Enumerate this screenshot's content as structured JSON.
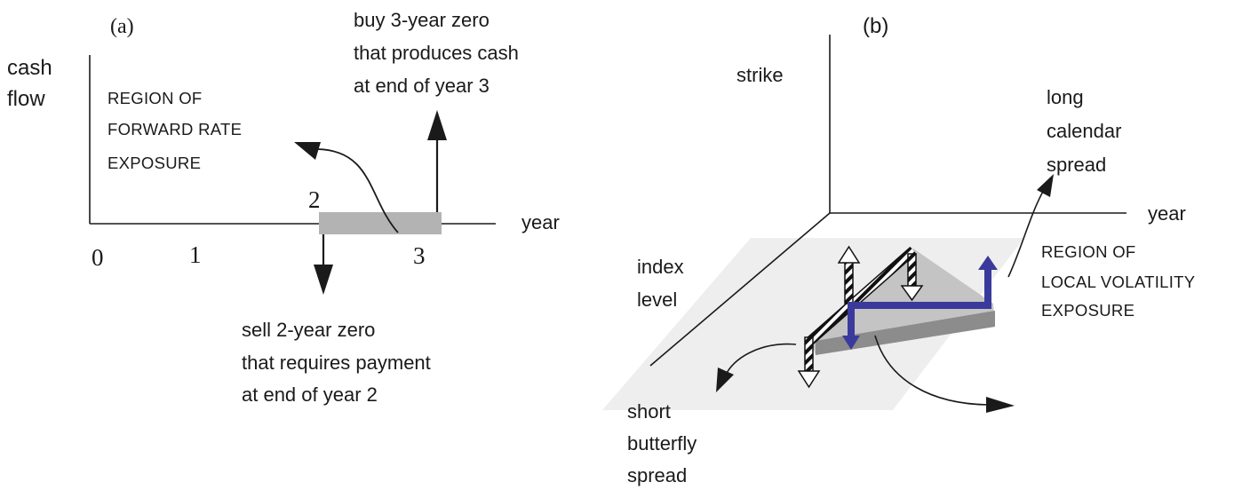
{
  "panel_a": {
    "label": "(a)",
    "y_axis_label_line1": "cash",
    "y_axis_label_line2": "flow",
    "x_axis_label": "year",
    "region_label": [
      "REGION OF",
      "FORWARD RATE",
      "EXPOSURE"
    ],
    "ticks": [
      "0",
      "1",
      "2",
      "3"
    ],
    "buy_label": [
      "buy 3-year zero",
      "that produces cash",
      "at end of year 3"
    ],
    "sell_label": [
      "sell 2-year zero",
      "that requires payment",
      "at end of year 2"
    ]
  },
  "panel_b": {
    "label": "(b)",
    "strike_label": "strike",
    "year_label": "year",
    "index_label": [
      "index",
      "level"
    ],
    "calendar_label": [
      "long",
      "calendar",
      "spread"
    ],
    "region_label": [
      "REGION OF",
      "LOCAL VOLATILITY",
      "EXPOSURE"
    ],
    "butterfly_label": [
      "short",
      "butterfly",
      "spread"
    ]
  },
  "colors": {
    "ink": "#1a1a1a",
    "shade": "#b3b3b3",
    "plane": "#eeeeee",
    "wedge_top": "#c4c4c4",
    "wedge_side": "#8c8c8c",
    "calendar_blue": "#3a3a9c"
  }
}
